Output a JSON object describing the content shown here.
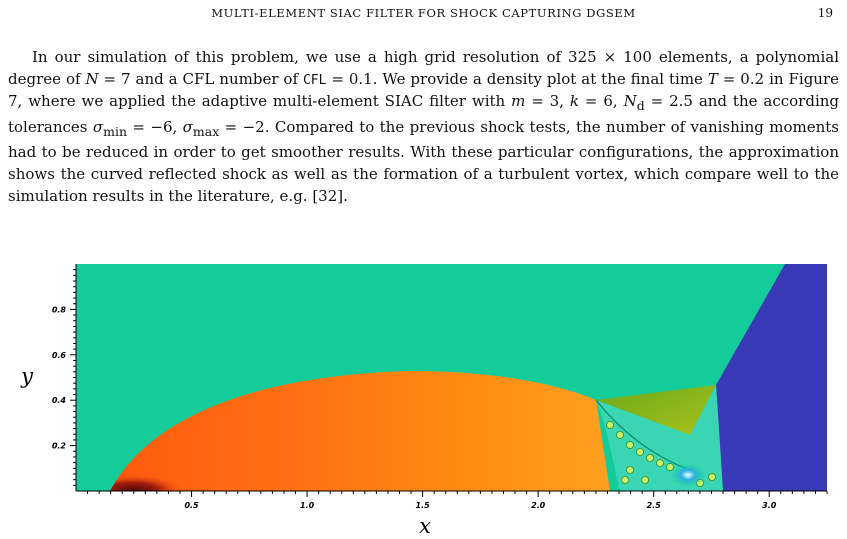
{
  "header": {
    "running_title": "MULTI-ELEMENT SIAC FILTER FOR SHOCK CAPTURING DGSEM",
    "page_number": "19"
  },
  "paragraph": {
    "segments": [
      {
        "t": "In our simulation of this problem, we use a high grid resolution of 325 × 100 elements, a polynomial degree of "
      },
      {
        "t": "N",
        "style": "m"
      },
      {
        "t": " = 7 and a CFL number of "
      },
      {
        "t": "CFL",
        "style": "mono"
      },
      {
        "t": " = 0.1. We provide a density plot at the final time "
      },
      {
        "t": "T",
        "style": "m"
      },
      {
        "t": " = 0.2 in Figure 7, where we applied the adaptive multi-element SIAC filter with "
      },
      {
        "t": "m",
        "style": "m"
      },
      {
        "t": " = 3, "
      },
      {
        "t": "k",
        "style": "m"
      },
      {
        "t": " = 6, "
      },
      {
        "t": "N",
        "style": "m"
      },
      {
        "t": "d",
        "style": "sub"
      },
      {
        "t": " = 2.5 and the according tolerances "
      },
      {
        "t": "σ",
        "style": "m"
      },
      {
        "t": "min",
        "style": "sub"
      },
      {
        "t": " = −6, "
      },
      {
        "t": "σ",
        "style": "m"
      },
      {
        "t": "max",
        "style": "sub"
      },
      {
        "t": " = −2. Compared to the previous shock tests, the number of vanishing moments had to be reduced in order to get smoother results. With these particular configurations, the approximation shows the curved reflected shock as well as the formation of a turbulent vortex, which compare well to the simulation results in the literature, e.g. [32]."
      }
    ]
  },
  "figure": {
    "xlabel": "x",
    "ylabel": "y",
    "x_ticks": [
      "0.5",
      "1.0",
      "1.5",
      "2.0",
      "2.5",
      "3.0"
    ],
    "y_ticks": [
      "0.2",
      "0.4",
      "0.6",
      "0.8"
    ],
    "colors": {
      "background_flow": "#13cc9a",
      "shocked_region": "#3a3ab8",
      "dense_core": "#5a0a0a",
      "bow_orange": "#ff8a12",
      "triangle_green": "#7fb81a"
    }
  }
}
